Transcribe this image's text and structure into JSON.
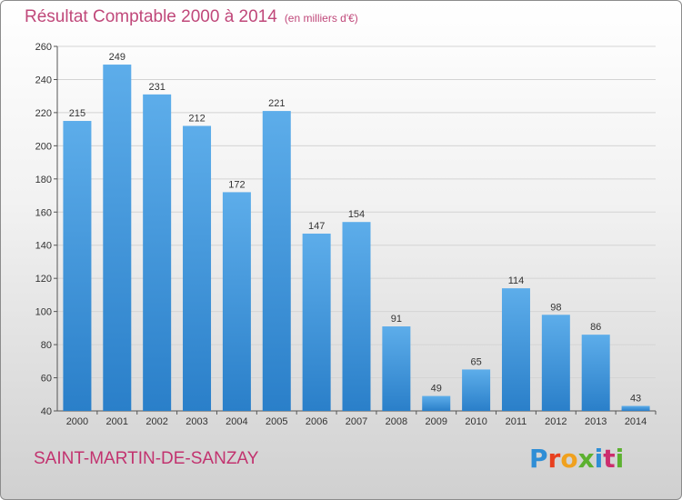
{
  "header": {
    "title": "Résultat Comptable 2000 à 2014",
    "unit": "(en milliers d'€)"
  },
  "footer": {
    "commune": "SAINT-MARTIN-DE-SANZAY",
    "brand": "Proxiti"
  },
  "colors": {
    "bar_top": "#5dadea",
    "bar_bottom": "#2a7fc9",
    "title": "#c0487a",
    "brand": [
      "#2f8ed6",
      "#e8401f",
      "#f0a11e",
      "#5cb130",
      "#2f8ed6",
      "#cc2d6d",
      "#5cb130"
    ]
  },
  "chart_data": {
    "type": "bar",
    "categories": [
      "2000",
      "2001",
      "2002",
      "2003",
      "2004",
      "2005",
      "2006",
      "2007",
      "2008",
      "2009",
      "2010",
      "2011",
      "2012",
      "2013",
      "2014"
    ],
    "values": [
      215,
      249,
      231,
      212,
      172,
      221,
      147,
      154,
      91,
      49,
      65,
      114,
      98,
      86,
      43
    ],
    "ylim": [
      40,
      260
    ],
    "yticks": [
      40,
      60,
      80,
      100,
      120,
      140,
      160,
      180,
      200,
      220,
      240,
      260
    ],
    "grid": true,
    "legend": "none"
  }
}
